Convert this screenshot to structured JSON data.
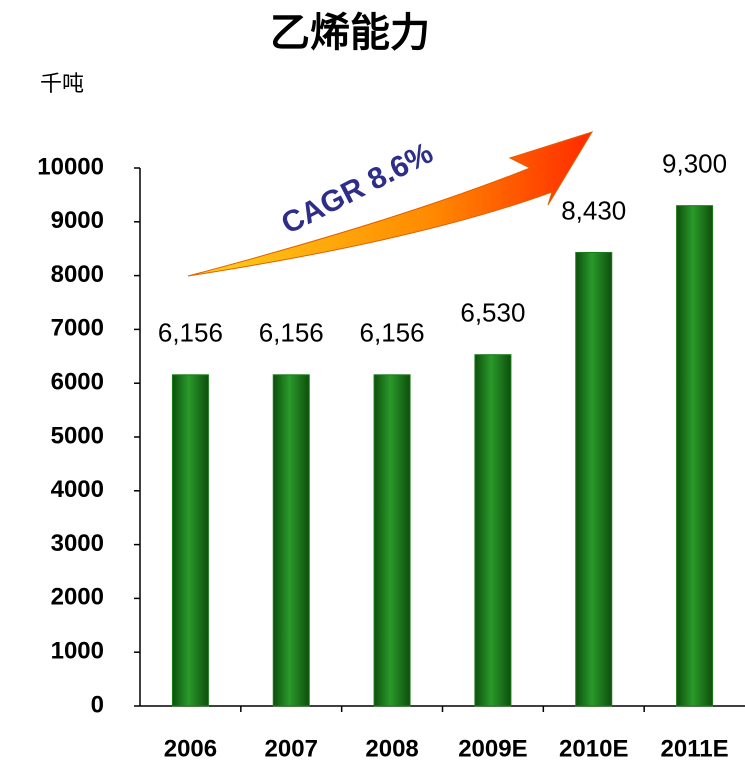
{
  "chart_data": {
    "type": "bar",
    "title": "乙烯能力",
    "y_label": "千吨",
    "annotation": "CAGR 8.6%",
    "categories": [
      "2006",
      "2007",
      "2008",
      "2009E",
      "2010E",
      "2011E"
    ],
    "values": [
      6156,
      6156,
      6156,
      6530,
      8430,
      9300
    ],
    "value_labels": [
      "6,156",
      "6,156",
      "6,156",
      "6,530",
      "8,430",
      "9,300"
    ],
    "color": "#1a7a1a",
    "ylim": [
      0,
      10000
    ],
    "yticks": [
      0,
      1000,
      2000,
      3000,
      4000,
      5000,
      6000,
      7000,
      8000,
      9000,
      10000
    ],
    "grid": false
  }
}
